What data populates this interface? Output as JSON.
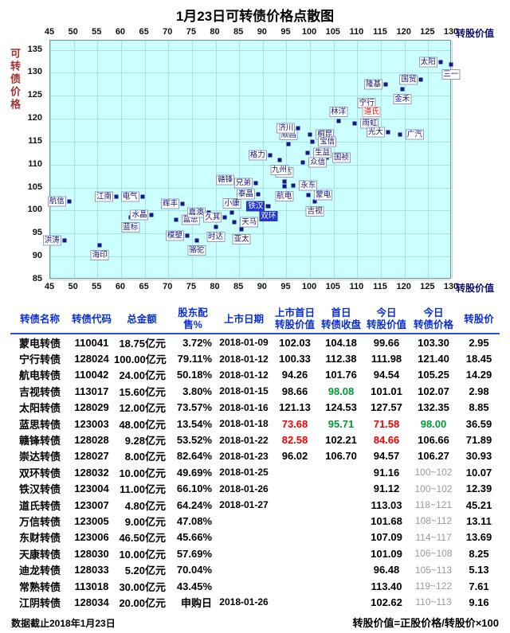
{
  "chart_data": {
    "type": "scatter",
    "title": "1月23日可转债价格点散图",
    "xlabel": "转股价值",
    "ylabel": "可转债价格",
    "xlim": [
      45,
      130
    ],
    "ylim": [
      85,
      135
    ],
    "x_ticks": [
      45,
      50,
      55,
      60,
      65,
      70,
      75,
      80,
      85,
      90,
      95,
      100,
      105,
      110,
      115,
      120,
      125,
      130
    ],
    "y_ticks": [
      135,
      130,
      125,
      120,
      115,
      110,
      105,
      100,
      95,
      90,
      85
    ],
    "grid": true,
    "point_shape": "square",
    "points": [
      {
        "label": "航信",
        "x": 49,
        "y": 102
      },
      {
        "label": "洪涛",
        "x": 48,
        "y": 93.5
      },
      {
        "label": "海印",
        "x": 55.5,
        "y": 92.5,
        "la": "b"
      },
      {
        "label": "江南",
        "x": 59,
        "y": 103
      },
      {
        "label": "蓝标",
        "x": 62,
        "y": 98.5,
        "la": "b"
      },
      {
        "label": "电气",
        "x": 64.5,
        "y": 103
      },
      {
        "label": "水晶",
        "x": 66.5,
        "y": 99
      },
      {
        "label": "蓝思",
        "x": 71.58,
        "y": 98,
        "la": "r"
      },
      {
        "label": "辉丰",
        "x": 73,
        "y": 101.5
      },
      {
        "label": "模塑",
        "x": 74,
        "y": 94.5
      },
      {
        "label": "骆驼",
        "x": 76,
        "y": 93.5,
        "la": "b"
      },
      {
        "label": "嘉澳",
        "x": 78.5,
        "y": 99.5
      },
      {
        "label": "时达",
        "x": 80,
        "y": 96.5,
        "la": "b"
      },
      {
        "label": "久其",
        "x": 82,
        "y": 98.5
      },
      {
        "label": "小康",
        "x": 83.5,
        "y": 99.5,
        "la": "a"
      },
      {
        "label": "天马",
        "x": 84,
        "y": 97.5,
        "la": "r"
      },
      {
        "label": "亚太",
        "x": 85.5,
        "y": 96,
        "la": "b"
      },
      {
        "label": "泰晶",
        "x": 89,
        "y": 103.5
      },
      {
        "label": "兄弟",
        "x": 88.5,
        "y": 106
      },
      {
        "label": "双环",
        "x": 91.2,
        "y": 101,
        "la": "b",
        "style": "listing"
      },
      {
        "label": "铁汉",
        "x": 91.1,
        "y": 101,
        "style": "listing"
      },
      {
        "label": "赣锋",
        "x": 84.66,
        "y": 106.66
      },
      {
        "label": "崇达",
        "x": 94.57,
        "y": 106.27,
        "la": "a"
      },
      {
        "label": "航电",
        "x": 94.54,
        "y": 105.25,
        "la": "b"
      },
      {
        "label": "永东",
        "x": 96.5,
        "y": 105.5,
        "la": "r"
      },
      {
        "label": "蒙电",
        "x": 99.66,
        "y": 103.3,
        "la": "r"
      },
      {
        "label": "吉视",
        "x": 101.01,
        "y": 102.07,
        "la": "b"
      },
      {
        "label": "格力",
        "x": 91.5,
        "y": 112
      },
      {
        "label": "九州",
        "x": 93.5,
        "y": 111,
        "la": "b"
      },
      {
        "label": "顺昌",
        "x": 95.5,
        "y": 114.5,
        "la": "a"
      },
      {
        "label": "济川",
        "x": 97.5,
        "y": 118
      },
      {
        "label": "桐昆",
        "x": 100,
        "y": 116.5,
        "la": "r"
      },
      {
        "label": "宝信",
        "x": 100.5,
        "y": 115,
        "la": "r"
      },
      {
        "label": "生益",
        "x": 99.5,
        "y": 112.5,
        "la": "r"
      },
      {
        "label": "众信",
        "x": 98.5,
        "y": 110.5,
        "la": "r"
      },
      {
        "label": "国祯",
        "x": 103.5,
        "y": 111.5,
        "la": "r"
      },
      {
        "label": "林洋",
        "x": 106,
        "y": 119.5,
        "la": "a"
      },
      {
        "label": "雨虹",
        "x": 109.5,
        "y": 119,
        "la": "r"
      },
      {
        "label": "宁行",
        "x": 111.98,
        "y": 121.4,
        "la": "a"
      },
      {
        "label": "道氏",
        "x": 113.03,
        "y": 119.5,
        "la": "a",
        "style": "red"
      },
      {
        "label": "光大",
        "x": 116.5,
        "y": 117
      },
      {
        "label": "广汽",
        "x": 119,
        "y": 116.5,
        "la": "r"
      },
      {
        "label": "隆基",
        "x": 116,
        "y": 127.5
      },
      {
        "label": "金禾",
        "x": 119.5,
        "y": 126.5,
        "la": "b"
      },
      {
        "label": "国贸",
        "x": 123.5,
        "y": 128.5
      },
      {
        "label": "太阳",
        "x": 127.57,
        "y": 132.35
      },
      {
        "label": "三一",
        "x": 129.8,
        "y": 131.8,
        "la": "b"
      }
    ]
  },
  "table": {
    "headers": [
      {
        "l1": "转债名称"
      },
      {
        "l1": "转债代码"
      },
      {
        "l1": "总金额"
      },
      {
        "l1": "股东配售%"
      },
      {
        "l1": "上市日期"
      },
      {
        "l1": "上市首日",
        "l2": "转股价值"
      },
      {
        "l1": "首日",
        "l2": "转债收盘"
      },
      {
        "l1": "今日",
        "l2": "转股价值"
      },
      {
        "l1": "今日",
        "l2": "转债价格"
      },
      {
        "l1": "转股价"
      }
    ],
    "rows": [
      {
        "cells": [
          "蒙电转债",
          "110041",
          "18.75亿元",
          "3.72%",
          "2018-01-09",
          "102.03",
          "104.18",
          "99.66",
          "103.30",
          "2.95"
        ]
      },
      {
        "cells": [
          "宁行转债",
          "128024",
          "100.00亿元",
          "79.11%",
          "2018-01-12",
          "100.33",
          "112.38",
          "111.98",
          "121.40",
          "18.45"
        ]
      },
      {
        "cells": [
          "航电转债",
          "110042",
          "24.00亿元",
          "50.18%",
          "2018-01-12",
          "94.26",
          "101.76",
          "94.54",
          "105.25",
          "14.29"
        ]
      },
      {
        "cells": [
          "吉视转债",
          "113017",
          "15.60亿元",
          "3.80%",
          "2018-01-15",
          "98.66",
          "98.08",
          "101.01",
          "102.07",
          "2.98"
        ],
        "styles": {
          "6": "green"
        }
      },
      {
        "cells": [
          "太阳转债",
          "128029",
          "12.00亿元",
          "73.57%",
          "2018-01-16",
          "121.13",
          "124.53",
          "127.57",
          "132.35",
          "8.85"
        ]
      },
      {
        "cells": [
          "蓝思转债",
          "123003",
          "48.00亿元",
          "13.54%",
          "2018-01-18",
          "73.68",
          "95.71",
          "71.58",
          "98.00",
          "36.59"
        ],
        "styles": {
          "5": "red",
          "6": "green",
          "7": "red",
          "8": "green"
        }
      },
      {
        "cells": [
          "赣锋转债",
          "128028",
          "9.28亿元",
          "53.52%",
          "2018-01-22",
          "82.58",
          "102.21",
          "84.66",
          "106.66",
          "71.89"
        ],
        "styles": {
          "5": "red",
          "7": "red"
        }
      },
      {
        "cells": [
          "崇达转债",
          "128027",
          "8.00亿元",
          "82.64%",
          "2018-01-23",
          "96.02",
          "106.70",
          "94.57",
          "106.27",
          "30.93"
        ]
      },
      {
        "cells": [
          "双环转债",
          "128032",
          "10.00亿元",
          "49.69%",
          "2018-01-25",
          "",
          "",
          "91.16",
          "100~102",
          "10.07"
        ],
        "styles": {
          "8": "gray"
        }
      },
      {
        "cells": [
          "铁汉转债",
          "123004",
          "11.00亿元",
          "66.10%",
          "2018-01-26",
          "",
          "",
          "91.12",
          "100~102",
          "12.39"
        ],
        "styles": {
          "8": "gray"
        }
      },
      {
        "cells": [
          "道氏转债",
          "123007",
          "4.80亿元",
          "64.24%",
          "2018-01-27",
          "",
          "",
          "113.03",
          "118~121",
          "45.21"
        ],
        "styles": {
          "8": "gray"
        }
      },
      {
        "cells": [
          "万信转债",
          "123005",
          "9.00亿元",
          "47.08%",
          "",
          "",
          "",
          "101.68",
          "108~112",
          "13.11"
        ],
        "styles": {
          "8": "gray"
        }
      },
      {
        "cells": [
          "东财转债",
          "123006",
          "46.50亿元",
          "45.66%",
          "",
          "",
          "",
          "107.09",
          "114~117",
          "13.69"
        ],
        "styles": {
          "8": "gray"
        }
      },
      {
        "cells": [
          "天康转债",
          "128030",
          "10.00亿元",
          "57.69%",
          "",
          "",
          "",
          "101.09",
          "106~108",
          "8.25"
        ],
        "styles": {
          "8": "gray"
        }
      },
      {
        "cells": [
          "迪龙转债",
          "128033",
          "5.20亿元",
          "70.04%",
          "",
          "",
          "",
          "96.48",
          "105~113",
          "5.13"
        ],
        "styles": {
          "8": "gray"
        }
      },
      {
        "cells": [
          "常熟转债",
          "113018",
          "30.00亿元",
          "43.45%",
          "",
          "",
          "",
          "113.40",
          "119~122",
          "7.61"
        ],
        "styles": {
          "8": "gray"
        }
      },
      {
        "cells": [
          "江阴转债",
          "128034",
          "20.00亿元",
          "申购日",
          "2018-01-26",
          "",
          "",
          "102.62",
          "110~113",
          "9.16"
        ],
        "styles": {
          "8": "gray"
        }
      }
    ]
  },
  "footer": {
    "note": "数据截止2018年1月23日",
    "formula": "转股价值=正股价格/转股价×100"
  },
  "colors": {
    "header_blue": "#0B2FD6",
    "up_red": "#F00000",
    "down_green": "#009933",
    "range_gray": "#9A9A9A",
    "point_navy": "#16168A",
    "plot_background": "#CCFFFF",
    "y_title_maroon": "#A03434",
    "listing_label_blue": "#2438CC"
  }
}
